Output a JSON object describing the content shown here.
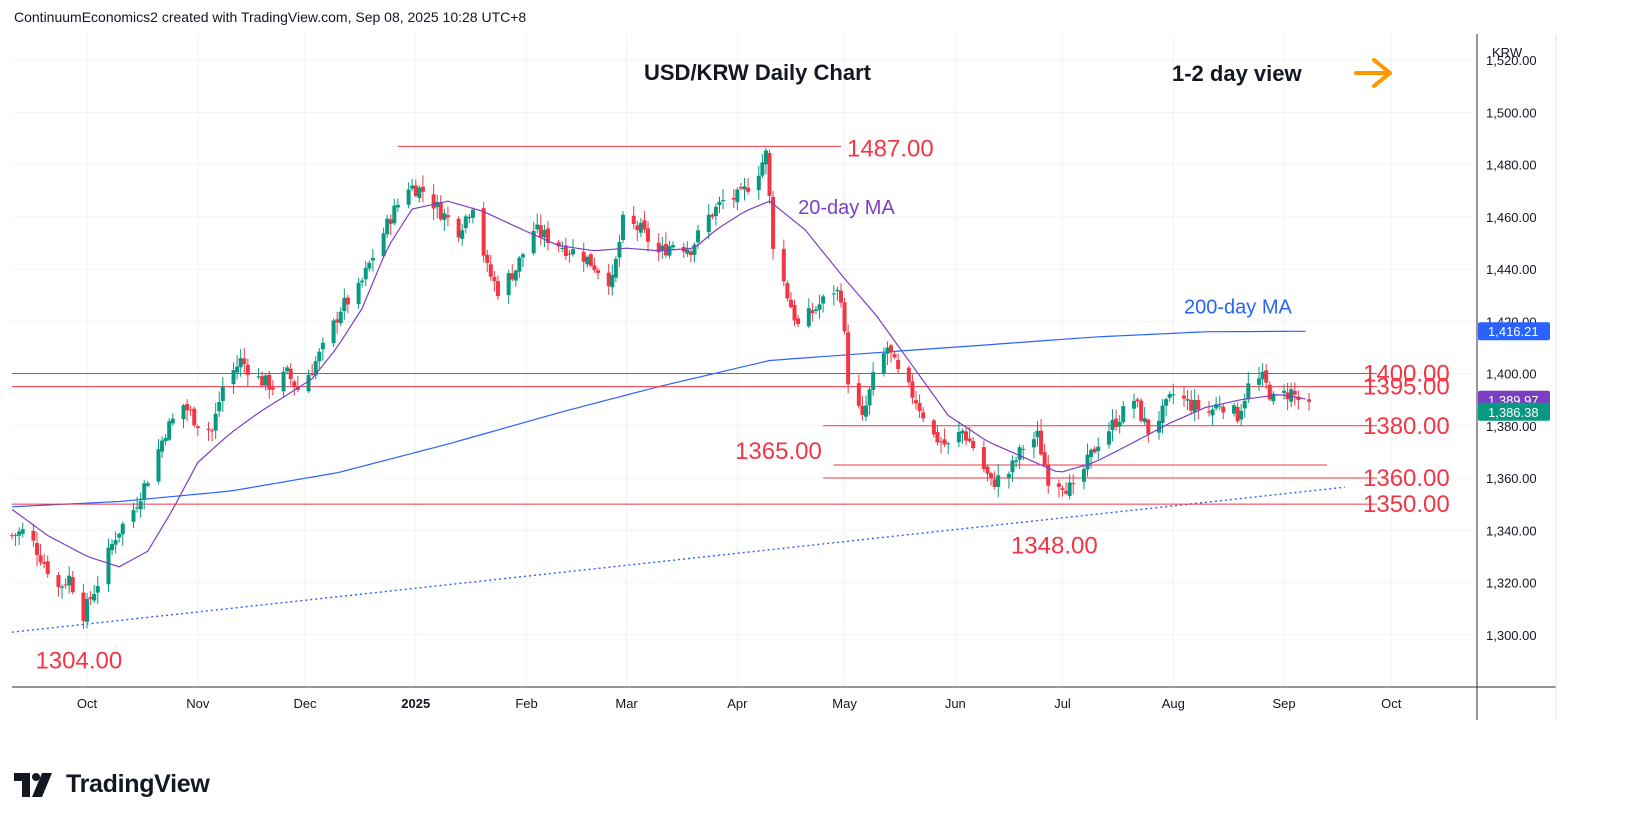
{
  "header": {
    "attribution": "ContinuumEconomics2 created with TradingView.com, Sep 08, 2025 10:28 UTC+8"
  },
  "brand": {
    "name": "TradingView"
  },
  "colors": {
    "up": "#089981",
    "down": "#f23645",
    "ma20": "#7b3fc4",
    "ma200": "#2962ff",
    "level": "#f23645",
    "arrow": "#ff9800"
  },
  "chart_data": {
    "type": "candlestick",
    "title": "USD/KRW Daily Chart",
    "view_note": "1-2 day view",
    "currency": "KRW",
    "ylim": [
      1280,
      1530
    ],
    "y_ticks": [
      "1,300.00",
      "1,320.00",
      "1,340.00",
      "1,360.00",
      "1,380.00",
      "1,400.00",
      "1,420.00",
      "1,440.00",
      "1,460.00",
      "1,480.00",
      "1,500.00",
      "1,520.00"
    ],
    "x_ticks": [
      {
        "label": "Oct",
        "date": "2024-10-01",
        "bold": false
      },
      {
        "label": "Nov",
        "date": "2024-11-01",
        "bold": false
      },
      {
        "label": "Dec",
        "date": "2024-12-01",
        "bold": false
      },
      {
        "label": "2025",
        "date": "2025-01-01",
        "bold": true
      },
      {
        "label": "Feb",
        "date": "2025-02-01",
        "bold": false
      },
      {
        "label": "Mar",
        "date": "2025-03-01",
        "bold": false
      },
      {
        "label": "Apr",
        "date": "2025-04-01",
        "bold": false
      },
      {
        "label": "May",
        "date": "2025-05-01",
        "bold": false
      },
      {
        "label": "Jun",
        "date": "2025-06-01",
        "bold": false
      },
      {
        "label": "Jul",
        "date": "2025-07-01",
        "bold": false
      },
      {
        "label": "Aug",
        "date": "2025-08-01",
        "bold": false
      },
      {
        "label": "Sep",
        "date": "2025-09-01",
        "bold": false
      },
      {
        "label": "Oct",
        "date": "2025-10-01",
        "bold": false
      }
    ],
    "x_range": [
      "2024-09-10",
      "2025-10-25"
    ],
    "price_badges": [
      {
        "label": "1,416.21",
        "value": 1416.21,
        "color": "#2962ff"
      },
      {
        "label": "1,389.97",
        "value": 1389.97,
        "color": "#7b3fc4"
      },
      {
        "label": "1,386.38",
        "value": 1386.38,
        "color": "#089981"
      }
    ],
    "levels": [
      {
        "label": "1487.00",
        "value": 1487,
        "from": "2024-12-27",
        "to": "2025-04-30",
        "label_side": "right-of-line"
      },
      {
        "label": "1400.00",
        "value": 1400,
        "from": "2024-09-10",
        "to": "2025-09-27",
        "label_side": "end"
      },
      {
        "label": "1395.00",
        "value": 1395,
        "from": "2024-09-10",
        "to": "2025-09-27",
        "label_side": "end"
      },
      {
        "label": "1380.00",
        "value": 1380,
        "from": "2025-04-25",
        "to": "2025-09-27",
        "label_side": "end"
      },
      {
        "label": "1365.00",
        "value": 1365,
        "from": "2025-04-28",
        "to": "2025-09-13",
        "label_side": "left-of-line"
      },
      {
        "label": "1360.00",
        "value": 1360,
        "from": "2025-04-25",
        "to": "2025-09-27",
        "label_side": "end"
      },
      {
        "label": "1350.00",
        "value": 1350,
        "from": "2024-09-10",
        "to": "2025-09-27",
        "label_side": "end"
      }
    ],
    "point_labels": [
      {
        "label": "1304.00",
        "date": "2024-09-30",
        "value": 1304
      },
      {
        "label": "1348.00",
        "date": "2025-06-30",
        "value": 1348
      }
    ],
    "ma_labels": [
      {
        "label": "20-day MA",
        "date": "2025-04-18",
        "value": 1461,
        "color": "#7b3fc4"
      },
      {
        "label": "200-day MA",
        "date": "2025-08-04",
        "value": 1423,
        "color": "#2962ff"
      }
    ],
    "trendline": {
      "style": "dotted",
      "color": "#2962ff",
      "from": {
        "date": "2024-09-10",
        "value": 1301
      },
      "to": {
        "date": "2025-09-18",
        "value": 1356.5
      }
    },
    "ma20_anchors": [
      [
        "2024-09-10",
        1348
      ],
      [
        "2024-09-20",
        1338
      ],
      [
        "2024-10-01",
        1330
      ],
      [
        "2024-10-10",
        1326
      ],
      [
        "2024-10-18",
        1332
      ],
      [
        "2024-10-25",
        1348
      ],
      [
        "2024-11-01",
        1366
      ],
      [
        "2024-11-10",
        1377
      ],
      [
        "2024-11-18",
        1385
      ],
      [
        "2024-11-25",
        1391
      ],
      [
        "2024-12-03",
        1398
      ],
      [
        "2024-12-10",
        1410
      ],
      [
        "2024-12-17",
        1425
      ],
      [
        "2024-12-24",
        1448
      ],
      [
        "2024-12-31",
        1463
      ],
      [
        "2025-01-10",
        1466
      ],
      [
        "2025-01-20",
        1462
      ],
      [
        "2025-01-31",
        1455
      ],
      [
        "2025-02-10",
        1449
      ],
      [
        "2025-02-20",
        1447
      ],
      [
        "2025-03-01",
        1448
      ],
      [
        "2025-03-10",
        1447
      ],
      [
        "2025-03-20",
        1448
      ],
      [
        "2025-03-26",
        1455
      ],
      [
        "2025-04-03",
        1462
      ],
      [
        "2025-04-10",
        1466
      ],
      [
        "2025-04-20",
        1455
      ],
      [
        "2025-04-30",
        1438
      ],
      [
        "2025-05-10",
        1422
      ],
      [
        "2025-05-20",
        1403
      ],
      [
        "2025-05-30",
        1384
      ],
      [
        "2025-06-10",
        1374
      ],
      [
        "2025-06-20",
        1368
      ],
      [
        "2025-06-30",
        1362
      ],
      [
        "2025-07-10",
        1366
      ],
      [
        "2025-07-20",
        1373
      ],
      [
        "2025-07-31",
        1381
      ],
      [
        "2025-08-10",
        1387
      ],
      [
        "2025-08-20",
        1390
      ],
      [
        "2025-08-31",
        1392
      ],
      [
        "2025-09-08",
        1390
      ]
    ],
    "ma200_anchors": [
      [
        "2024-09-10",
        1349
      ],
      [
        "2024-10-10",
        1351
      ],
      [
        "2024-11-10",
        1355
      ],
      [
        "2024-12-10",
        1362
      ],
      [
        "2025-01-10",
        1373
      ],
      [
        "2025-02-10",
        1385
      ],
      [
        "2025-03-10",
        1395
      ],
      [
        "2025-04-10",
        1405
      ],
      [
        "2025-05-10",
        1408
      ],
      [
        "2025-06-10",
        1411
      ],
      [
        "2025-07-10",
        1414
      ],
      [
        "2025-08-10",
        1416
      ],
      [
        "2025-09-08",
        1416.2
      ]
    ],
    "close_anchors": [
      [
        "2024-09-10",
        1338
      ],
      [
        "2024-09-14",
        1340
      ],
      [
        "2024-09-18",
        1330
      ],
      [
        "2024-09-23",
        1318
      ],
      [
        "2024-09-26",
        1322
      ],
      [
        "2024-09-30",
        1308
      ],
      [
        "2024-10-04",
        1320
      ],
      [
        "2024-10-09",
        1338
      ],
      [
        "2024-10-14",
        1348
      ],
      [
        "2024-10-18",
        1360
      ],
      [
        "2024-10-23",
        1378
      ],
      [
        "2024-10-28",
        1388
      ],
      [
        "2024-11-01",
        1381
      ],
      [
        "2024-11-05",
        1378
      ],
      [
        "2024-11-08",
        1395
      ],
      [
        "2024-11-13",
        1405
      ],
      [
        "2024-11-18",
        1398
      ],
      [
        "2024-11-22",
        1395
      ],
      [
        "2024-11-26",
        1400
      ],
      [
        "2024-11-29",
        1394
      ],
      [
        "2024-12-03",
        1402
      ],
      [
        "2024-12-07",
        1412
      ],
      [
        "2024-12-11",
        1425
      ],
      [
        "2024-12-16",
        1432
      ],
      [
        "2024-12-20",
        1445
      ],
      [
        "2024-12-25",
        1460
      ],
      [
        "2024-12-30",
        1472
      ],
      [
        "2025-01-03",
        1470
      ],
      [
        "2025-01-08",
        1462
      ],
      [
        "2025-01-13",
        1455
      ],
      [
        "2025-01-17",
        1465
      ],
      [
        "2025-01-21",
        1440
      ],
      [
        "2025-01-24",
        1432
      ],
      [
        "2025-01-29",
        1440
      ],
      [
        "2025-02-03",
        1455
      ],
      [
        "2025-02-07",
        1452
      ],
      [
        "2025-02-12",
        1448
      ],
      [
        "2025-02-17",
        1445
      ],
      [
        "2025-02-21",
        1440
      ],
      [
        "2025-02-25",
        1435
      ],
      [
        "2025-02-28",
        1458
      ],
      [
        "2025-03-05",
        1455
      ],
      [
        "2025-03-10",
        1446
      ],
      [
        "2025-03-14",
        1450
      ],
      [
        "2025-03-19",
        1448
      ],
      [
        "2025-03-24",
        1460
      ],
      [
        "2025-03-28",
        1466
      ],
      [
        "2025-04-02",
        1468
      ],
      [
        "2025-04-07",
        1478
      ],
      [
        "2025-04-09",
        1484
      ],
      [
        "2025-04-11",
        1450
      ],
      [
        "2025-04-15",
        1430
      ],
      [
        "2025-04-18",
        1418
      ],
      [
        "2025-04-23",
        1425
      ],
      [
        "2025-04-28",
        1432
      ],
      [
        "2025-04-30",
        1430
      ],
      [
        "2025-05-02",
        1398
      ],
      [
        "2025-05-06",
        1382
      ],
      [
        "2025-05-09",
        1398
      ],
      [
        "2025-05-13",
        1410
      ],
      [
        "2025-05-16",
        1400
      ],
      [
        "2025-05-21",
        1390
      ],
      [
        "2025-05-26",
        1376
      ],
      [
        "2025-05-30",
        1372
      ],
      [
        "2025-06-03",
        1378
      ],
      [
        "2025-06-06",
        1372
      ],
      [
        "2025-06-11",
        1358
      ],
      [
        "2025-06-16",
        1362
      ],
      [
        "2025-06-20",
        1372
      ],
      [
        "2025-06-24",
        1376
      ],
      [
        "2025-06-27",
        1360
      ],
      [
        "2025-07-01",
        1358
      ],
      [
        "2025-07-04",
        1355
      ],
      [
        "2025-07-08",
        1366
      ],
      [
        "2025-07-11",
        1374
      ],
      [
        "2025-07-16",
        1382
      ],
      [
        "2025-07-21",
        1390
      ],
      [
        "2025-07-25",
        1378
      ],
      [
        "2025-07-29",
        1385
      ],
      [
        "2025-08-01",
        1392
      ],
      [
        "2025-08-06",
        1388
      ],
      [
        "2025-08-11",
        1385
      ],
      [
        "2025-08-14",
        1389
      ],
      [
        "2025-08-19",
        1384
      ],
      [
        "2025-08-22",
        1395
      ],
      [
        "2025-08-26",
        1398
      ],
      [
        "2025-08-29",
        1390
      ],
      [
        "2025-09-03",
        1393
      ],
      [
        "2025-09-05",
        1390
      ],
      [
        "2025-09-08",
        1386.38
      ]
    ]
  }
}
